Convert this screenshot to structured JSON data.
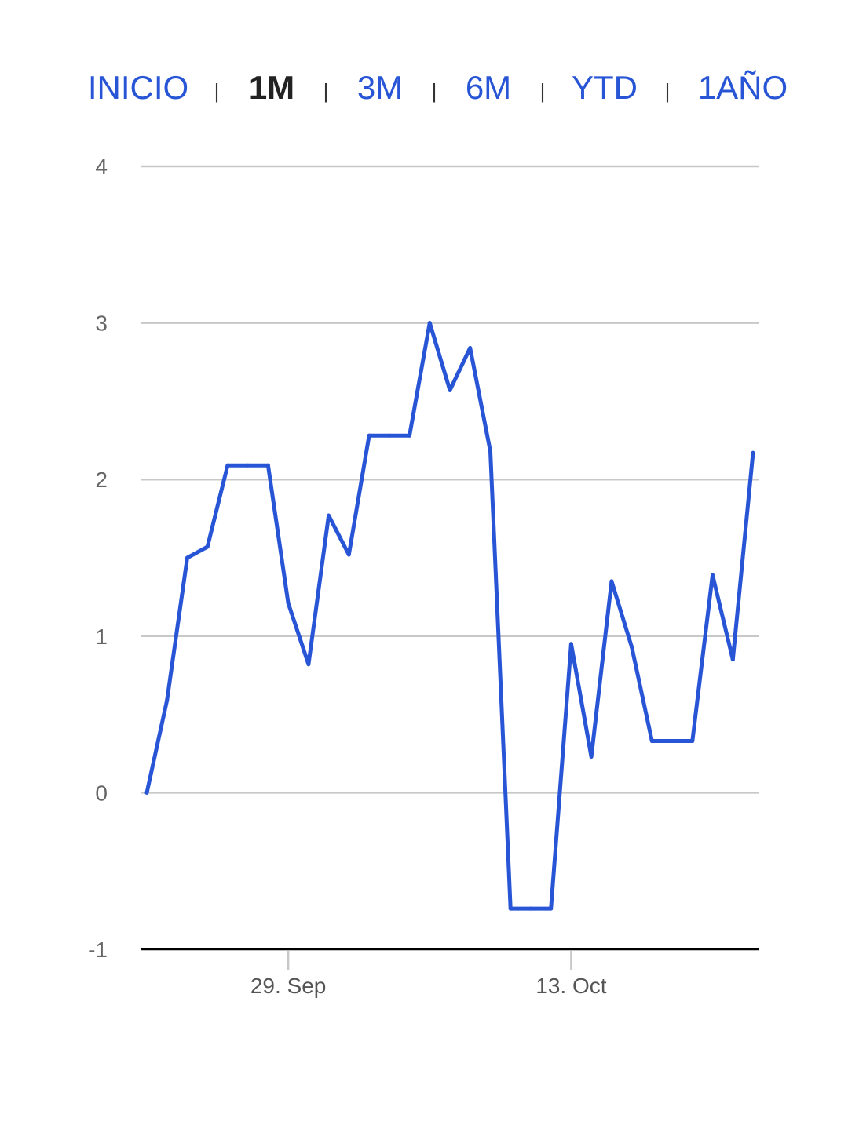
{
  "range_selector": {
    "buttons": [
      {
        "id": "inicio",
        "label": "INICIO",
        "active": false
      },
      {
        "id": "1m",
        "label": "1M",
        "active": true
      },
      {
        "id": "3m",
        "label": "3M",
        "active": false
      },
      {
        "id": "6m",
        "label": "6M",
        "active": false
      },
      {
        "id": "ytd",
        "label": "YTD",
        "active": false
      },
      {
        "id": "1ano",
        "label": "1AÑO",
        "active": false
      }
    ],
    "separator": "|"
  },
  "colors": {
    "series": "#2855d6",
    "grid": "#c8c8c8",
    "axis": "#000000",
    "active_button": "#222222",
    "button": "#2855d6"
  },
  "chart_data": {
    "type": "line",
    "title": "",
    "xlabel": "",
    "ylabel": "",
    "ylim": [
      -1,
      4
    ],
    "yticks": [
      "4",
      "3",
      "2",
      "1",
      "0",
      "-1"
    ],
    "xticks": [
      {
        "date": "2024-09-29",
        "label": "29. Sep"
      },
      {
        "date": "2024-10-13",
        "label": "13. Oct"
      }
    ],
    "xlim": [
      "2024-09-22",
      "2024-10-22"
    ],
    "grid": true,
    "legend": "none",
    "series": [
      {
        "x": [
          "2024-09-22",
          "2024-09-23",
          "2024-09-24",
          "2024-09-25",
          "2024-09-26",
          "2024-09-27",
          "2024-09-28",
          "2024-09-29",
          "2024-09-30",
          "2024-10-01",
          "2024-10-02",
          "2024-10-03",
          "2024-10-04",
          "2024-10-05",
          "2024-10-06",
          "2024-10-07",
          "2024-10-08",
          "2024-10-09",
          "2024-10-10",
          "2024-10-11",
          "2024-10-12",
          "2024-10-13",
          "2024-10-14",
          "2024-10-15",
          "2024-10-16",
          "2024-10-17",
          "2024-10-18",
          "2024-10-19",
          "2024-10-20",
          "2024-10-21",
          "2024-10-22"
        ],
        "values": [
          0.0,
          0.59,
          1.5,
          1.57,
          2.09,
          2.09,
          2.09,
          1.21,
          0.82,
          1.77,
          1.52,
          2.28,
          2.28,
          2.28,
          3.0,
          2.57,
          2.84,
          2.18,
          -0.74,
          -0.74,
          -0.74,
          0.95,
          0.23,
          1.35,
          0.93,
          0.33,
          0.33,
          0.33,
          1.39,
          0.85,
          2.17
        ]
      }
    ]
  }
}
